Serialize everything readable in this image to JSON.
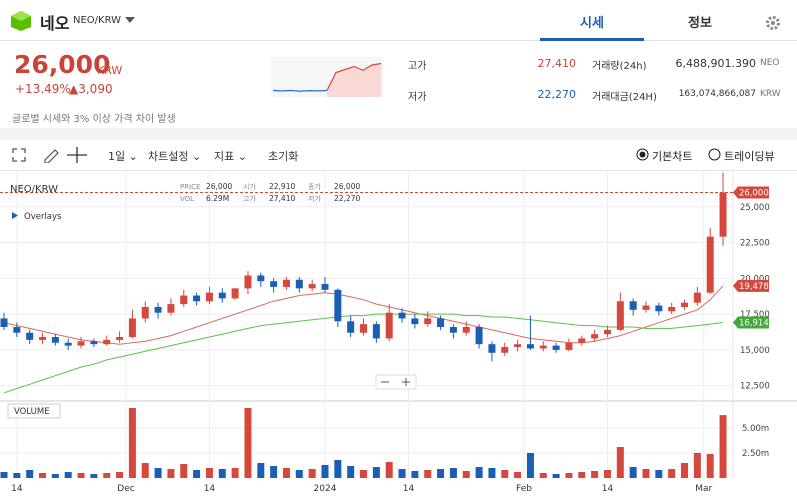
{
  "header": {
    "name": "네오",
    "pair": "NEO/KRW",
    "tabs": [
      "시세",
      "정보"
    ]
  },
  "price": {
    "value": "26,000",
    "unit": "KRW",
    "change_pct": "+13.49%",
    "change": "▲3,090"
  },
  "stats": [
    {
      "label": "고가",
      "value": "27,410"
    },
    {
      "label": "저가",
      "value": "22,270"
    },
    {
      "label": "거래량(24h)",
      "value": "6,488,901.390",
      "unit": "NEO"
    },
    {
      "label": "거래대금(24H)",
      "value": "163,074,866,087",
      "unit": "KRW"
    }
  ],
  "notice": "글로벌 시세와 3% 이상 가격 차이 발생",
  "toolbar": {
    "interval": "1일",
    "settings": "차트설정",
    "indicators": "지표",
    "reset": "초기화",
    "views": [
      "기본차트",
      "트레이딩뷰"
    ]
  },
  "chart_data": [
    {
      "type": "line",
      "values": [
        22400,
        22350,
        22400,
        22300,
        22380,
        22350,
        22400,
        24800,
        25200,
        25600,
        25100,
        25800,
        26000
      ],
      "split": 7,
      "colors": [
        "#2a6fd0",
        "#d6473c"
      ],
      "ylim": [
        21800,
        26600
      ]
    },
    {
      "type": "candlestick",
      "title": "NEO/KRW",
      "overlays_label": "Overlays",
      "volume_label": "VOLUME",
      "info": [
        {
          "label": "PRICE",
          "value": "26,000"
        },
        {
          "label": "시가",
          "value": "22,910"
        },
        {
          "label": "종가",
          "value": "26,000"
        },
        {
          "label": "VOL",
          "value": "6.29M"
        },
        {
          "label": "고가",
          "value": "27,410"
        },
        {
          "label": "저가",
          "value": "22,270"
        }
      ],
      "up_color": "#d6473c",
      "down_color": "#1a5fb4",
      "open": [
        17200,
        16600,
        16200,
        15700,
        15900,
        15500,
        15300,
        15600,
        15400,
        15700,
        15900,
        17200,
        18000,
        17600,
        18200,
        18800,
        18400,
        19000,
        18600,
        19300,
        20200,
        19800,
        19400,
        19900,
        19300,
        19600,
        19200,
        17000,
        16200,
        16800,
        15800,
        17600,
        17200,
        16800,
        17200,
        16600,
        16200,
        16600,
        15400,
        14800,
        15200,
        15400,
        15100,
        15300,
        15000,
        15500,
        15800,
        16100,
        16400,
        18400,
        17800,
        18100,
        17700,
        18000,
        18300,
        19000,
        22910
      ],
      "high": [
        17600,
        16900,
        16400,
        16200,
        16100,
        15800,
        15900,
        15800,
        16000,
        16300,
        17800,
        18400,
        18300,
        18600,
        19200,
        19000,
        19400,
        19300,
        19300,
        20500,
        20400,
        20000,
        20100,
        20100,
        19900,
        20100,
        19300,
        17400,
        17200,
        17000,
        18200,
        17900,
        17500,
        17700,
        17400,
        16800,
        17000,
        16800,
        15600,
        15500,
        15700,
        17400,
        15600,
        15500,
        15800,
        16000,
        16400,
        16700,
        19000,
        18600,
        18400,
        18300,
        18300,
        18500,
        19400,
        23500,
        27410
      ],
      "low": [
        16400,
        15900,
        15400,
        15400,
        15300,
        15000,
        15100,
        15200,
        15300,
        15500,
        15800,
        16900,
        17200,
        17400,
        18000,
        18100,
        18200,
        18300,
        18500,
        18900,
        19400,
        19000,
        19200,
        19000,
        19100,
        19000,
        16600,
        15900,
        16000,
        15500,
        15600,
        16900,
        16500,
        16600,
        16400,
        15800,
        16000,
        15100,
        14200,
        14600,
        14900,
        15000,
        14900,
        14800,
        14900,
        15300,
        15600,
        15900,
        16300,
        17400,
        17600,
        17400,
        17500,
        17800,
        18100,
        18900,
        22270
      ],
      "close": [
        16600,
        16200,
        15700,
        15900,
        15500,
        15300,
        15600,
        15400,
        15700,
        15900,
        17200,
        18000,
        17600,
        18200,
        18800,
        18400,
        19000,
        18600,
        19300,
        20200,
        19800,
        19400,
        19900,
        19300,
        19600,
        19200,
        17000,
        16200,
        16800,
        15800,
        17600,
        17200,
        16800,
        17200,
        16600,
        16200,
        16600,
        15400,
        14800,
        15200,
        15400,
        15100,
        15300,
        15000,
        15500,
        15800,
        16100,
        16400,
        18400,
        17800,
        18100,
        17700,
        18000,
        18300,
        19000,
        22910,
        26000
      ],
      "volume": [
        600000,
        500000,
        800000,
        500000,
        400000,
        600000,
        500000,
        400000,
        500000,
        600000,
        7000000,
        1500000,
        1000000,
        900000,
        1400000,
        800000,
        1000000,
        900000,
        1000000,
        7000000,
        1500000,
        1200000,
        1000000,
        800000,
        900000,
        1300000,
        1800000,
        1200000,
        800000,
        1100000,
        1600000,
        900000,
        700000,
        800000,
        900000,
        1000000,
        700000,
        1100000,
        1000000,
        800000,
        600000,
        2500000,
        500000,
        400000,
        500000,
        600000,
        700000,
        800000,
        3100000,
        1100000,
        900000,
        800000,
        900000,
        1500000,
        2500000,
        2400000,
        6290000
      ],
      "series": [
        {
          "color": "#e0675e",
          "values": [
            16900,
            16700,
            16500,
            16300,
            16100,
            15900,
            15700,
            15600,
            15500,
            15400,
            15500,
            15600,
            15800,
            16000,
            16300,
            16600,
            16900,
            17200,
            17500,
            17800,
            18100,
            18400,
            18600,
            18800,
            18900,
            19000,
            18900,
            18700,
            18500,
            18200,
            18000,
            17800,
            17600,
            17400,
            17200,
            17000,
            16800,
            16600,
            16400,
            16200,
            16000,
            15800,
            15700,
            15600,
            15500,
            15500,
            15600,
            15800,
            16000,
            16300,
            16600,
            16900,
            17200,
            17500,
            17800,
            18500,
            19478
          ]
        },
        {
          "color": "#5cbf4e",
          "values": [
            12000,
            12300,
            12600,
            12900,
            13200,
            13500,
            13800,
            14000,
            14300,
            14500,
            14700,
            14900,
            15100,
            15300,
            15500,
            15700,
            15900,
            16100,
            16300,
            16500,
            16700,
            16800,
            16900,
            17000,
            17100,
            17200,
            17300,
            17400,
            17400,
            17500,
            17500,
            17500,
            17500,
            17500,
            17500,
            17500,
            17400,
            17400,
            17300,
            17300,
            17200,
            17100,
            17000,
            16900,
            16800,
            16700,
            16700,
            16600,
            16600,
            16600,
            16500,
            16500,
            16500,
            16600,
            16700,
            16800,
            16914
          ]
        }
      ],
      "price_tags": [
        {
          "value": 26000,
          "label": "26,000",
          "color": "#d6473c"
        },
        {
          "value": 19478,
          "label": "19,478",
          "color": "#d6473c"
        },
        {
          "value": 16914,
          "label": "16,914",
          "color": "#43a83a"
        }
      ],
      "ylim": [
        11500,
        27430
      ],
      "yticks": [
        {
          "value": 12500,
          "label": "12,500"
        },
        {
          "value": 15000,
          "label": "15,000"
        },
        {
          "value": 17500,
          "label": "17,500"
        },
        {
          "value": 20000,
          "label": "20,000"
        },
        {
          "value": 22500,
          "label": "22,500"
        },
        {
          "value": 25000,
          "label": "25,000"
        }
      ],
      "vol_ylim": [
        0,
        7600000
      ],
      "vol_ticks": [
        {
          "value": 2500000,
          "label": "2.50m"
        },
        {
          "value": 5000000,
          "label": "5.00m"
        }
      ],
      "xticks": [
        {
          "value": 1,
          "label": "14"
        },
        {
          "value": 9.5,
          "label": "Dec"
        },
        {
          "value": 16,
          "label": "14"
        },
        {
          "value": 25,
          "label": "2024"
        },
        {
          "value": 31.5,
          "label": "14"
        },
        {
          "value": 40.5,
          "label": "Feb"
        },
        {
          "value": 47,
          "label": "14"
        },
        {
          "value": 54.5,
          "label": "Mar"
        }
      ]
    }
  ]
}
